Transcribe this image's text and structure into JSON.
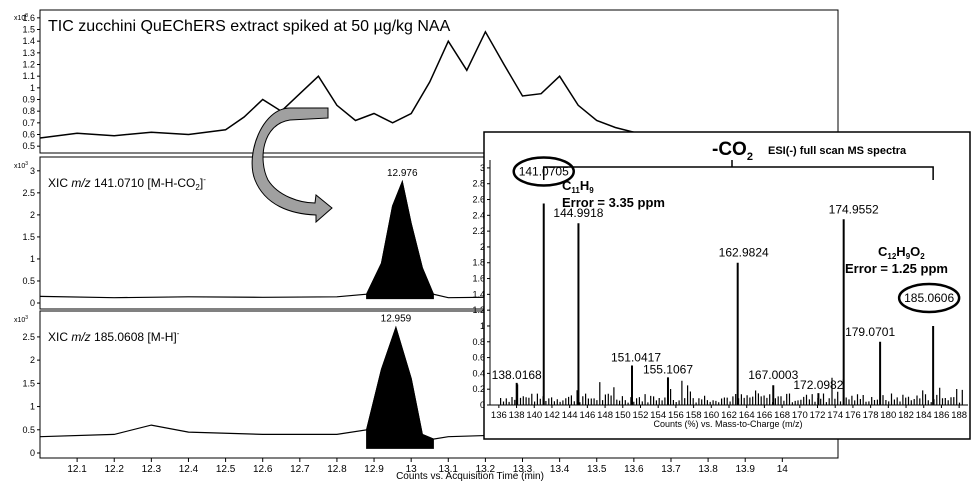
{
  "chart_data": [
    {
      "type": "line",
      "id": "tic",
      "title": "TIC zucchini QuEChERS extract spiked at 50 µg/kg NAA",
      "y_multiplier": "x10",
      "y_multiplier_exp": "8",
      "yticks": [
        0.5,
        0.6,
        0.7,
        0.8,
        0.9,
        1,
        1.1,
        1.2,
        1.3,
        1.4,
        1.5,
        1.6
      ],
      "ylim": [
        0.45,
        1.65
      ],
      "xlim": [
        12.0,
        14.15
      ],
      "x": [
        12.0,
        12.1,
        12.2,
        12.3,
        12.4,
        12.5,
        12.55,
        12.6,
        12.65,
        12.7,
        12.75,
        12.8,
        12.85,
        12.9,
        12.95,
        13.0,
        13.05,
        13.1,
        13.15,
        13.2,
        13.25,
        13.3,
        13.35,
        13.4,
        13.45,
        13.5,
        13.55,
        13.6,
        13.65
      ],
      "y": [
        0.57,
        0.61,
        0.59,
        0.62,
        0.6,
        0.64,
        0.75,
        0.9,
        0.8,
        0.95,
        1.1,
        0.85,
        0.72,
        0.78,
        0.7,
        0.78,
        1.05,
        1.4,
        1.15,
        1.48,
        1.2,
        0.93,
        0.95,
        1.1,
        0.85,
        0.72,
        0.66,
        0.62,
        0.6
      ]
    },
    {
      "type": "area",
      "id": "xic141",
      "label_prefix": "XIC",
      "label_mz": "m/z",
      "label_value": "141.0710 [M-H-CO",
      "label_sub": "2",
      "label_end": "]",
      "label_sup": "-",
      "y_multiplier": "x10",
      "y_multiplier_exp": "3",
      "yticks": [
        0,
        0.5,
        1,
        1.5,
        2,
        2.5,
        3
      ],
      "ylim": [
        0,
        3.2
      ],
      "xlim": [
        12.0,
        14.15
      ],
      "peak_label": "12.976",
      "peak_x": 12.976,
      "peak_y": 2.75,
      "x": [
        12.0,
        12.2,
        12.4,
        12.6,
        12.8,
        12.88,
        12.92,
        12.95,
        12.976,
        13.0,
        13.03,
        13.06,
        13.1,
        13.3,
        13.5,
        13.7,
        13.9,
        14.15
      ],
      "y": [
        0.15,
        0.12,
        0.14,
        0.13,
        0.14,
        0.2,
        0.9,
        2.2,
        2.75,
        1.8,
        0.8,
        0.2,
        0.12,
        0.14,
        0.12,
        0.13,
        0.12,
        0.13
      ]
    },
    {
      "type": "area",
      "id": "xic185",
      "label_prefix": "XIC",
      "label_mz": "m/z",
      "label_value": "185.0608 [M-H]",
      "label_sup": "-",
      "y_multiplier": "x10",
      "y_multiplier_exp": "3",
      "yticks": [
        0,
        0.5,
        1,
        1.5,
        2,
        2.5
      ],
      "ylim": [
        0,
        2.95
      ],
      "xlim": [
        12.0,
        14.15
      ],
      "xticks": [
        12.1,
        12.2,
        12.3,
        12.4,
        12.5,
        12.6,
        12.7,
        12.8,
        12.9,
        13,
        13.1,
        13.2,
        13.3,
        13.4,
        13.5,
        13.6,
        13.7,
        13.8,
        13.9,
        14
      ],
      "xlabel": "Counts vs. Acquisition Time (min)",
      "peak_label": "12.959",
      "peak_x": 12.959,
      "peak_y": 2.7,
      "x": [
        12.0,
        12.2,
        12.3,
        12.4,
        12.6,
        12.8,
        12.88,
        12.92,
        12.959,
        13.0,
        13.03,
        13.06,
        13.1,
        13.3,
        13.5,
        13.7,
        13.8,
        13.9,
        14.0,
        14.15
      ],
      "y": [
        0.35,
        0.4,
        0.6,
        0.45,
        0.4,
        0.4,
        0.5,
        1.8,
        2.7,
        1.6,
        0.4,
        0.3,
        0.35,
        0.4,
        0.4,
        0.42,
        0.45,
        0.5,
        0.48,
        0.42
      ]
    },
    {
      "type": "bar",
      "id": "ms",
      "title": "ESI(-)  full scan MS spectra",
      "loss_label": "-CO",
      "loss_sub": "2",
      "yticks": [
        0,
        0.2,
        0.4,
        0.6,
        0.8,
        1,
        1.2,
        1.4,
        1.6,
        1.8,
        2,
        2.2,
        2.4,
        2.6,
        2.8,
        3
      ],
      "ylim": [
        0,
        3.1
      ],
      "xticks": [
        136,
        138,
        140,
        142,
        144,
        146,
        148,
        150,
        152,
        154,
        156,
        158,
        160,
        162,
        164,
        166,
        168,
        170,
        172,
        174,
        176,
        178,
        180,
        182,
        184,
        186,
        188
      ],
      "xlim": [
        135,
        189
      ],
      "xlabel": "Counts (%) vs. Mass-to-Charge (m/z)",
      "peaks_mz": [
        138.0168,
        141.0705,
        144.9918,
        151.0417,
        155.1067,
        162.9824,
        167.0003,
        172.0982,
        174.9552,
        179.0701,
        185.0606
      ],
      "peaks_height": [
        0.28,
        2.55,
        2.3,
        0.5,
        0.35,
        1.8,
        0.25,
        0.15,
        2.35,
        0.8,
        1.0
      ],
      "peak_labels": [
        "138.0168",
        "141.0705",
        "144.9918",
        "151.0417",
        "155.1067",
        "162.9824",
        "167.0003",
        "172.0982",
        "174.9552",
        "179.0701",
        "185.0606"
      ],
      "annotation_1_formula": "C",
      "annotation_1_sub1": "11",
      "annotation_1_mid": "H",
      "annotation_1_sub2": "9",
      "annotation_1_error": "Error = 3.35 ppm",
      "annotation_2_formula": "C",
      "annotation_2_sub1": "12",
      "annotation_2_mid": "H",
      "annotation_2_sub2": "9",
      "annotation_2_end": "O",
      "annotation_2_sub3": "2",
      "annotation_2_error": "Error = 1.25 ppm"
    }
  ]
}
